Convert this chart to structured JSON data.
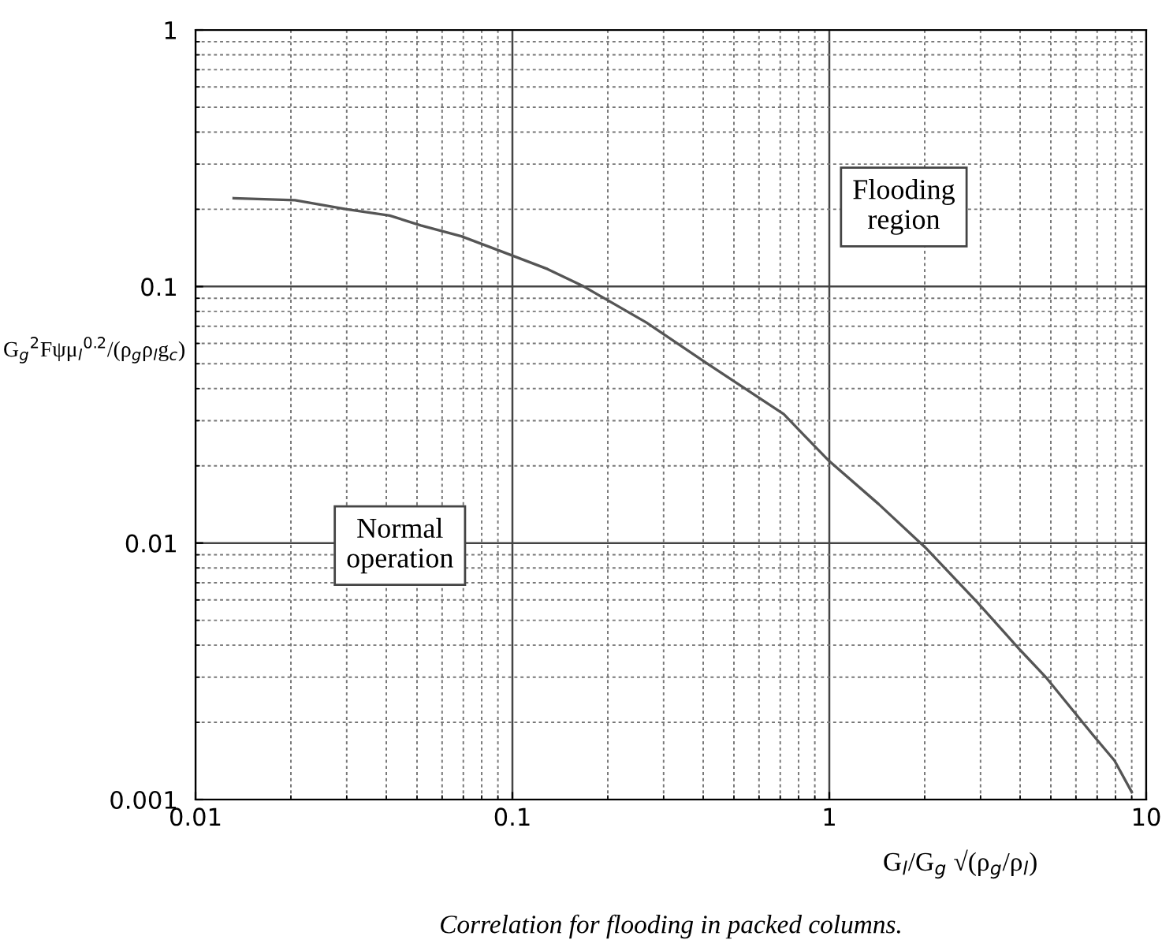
{
  "chart_data": {
    "type": "line",
    "x": [
      0.0132,
      0.0206,
      0.03,
      0.041,
      0.0514,
      0.069,
      0.091,
      0.129,
      0.168,
      0.265,
      0.405,
      0.718,
      0.99,
      1.43,
      2.01,
      2.94,
      4.0,
      4.81,
      6.78,
      7.94,
      9.0
    ],
    "series": [
      {
        "color": "#555555",
        "values": [
          0.221,
          0.217,
          0.2,
          0.189,
          0.173,
          0.157,
          0.138,
          0.117,
          0.1,
          0.0723,
          0.0508,
          0.0318,
          0.0211,
          0.0142,
          0.0096,
          0.00585,
          0.00383,
          0.00301,
          0.00179,
          0.00142,
          0.00107
        ]
      }
    ],
    "log": "xy",
    "xlim": [
      0.01,
      10
    ],
    "ylim": [
      0.001,
      1
    ],
    "xticks": [
      0.01,
      0.1,
      1,
      10
    ],
    "yticks": [
      0.001,
      0.01,
      0.1,
      1
    ],
    "xlabel": "G$_{l}$/G$_{g}$ √(ρ$_{g}$/ρ$_{l}$)",
    "ylabel": "G$_{g}$$^{2}$Fψμ$_{l}$$^{0.2}$/(ρ$_{g}$ρ$_{l}$g$_{c}$)",
    "grid": true,
    "marker": "none",
    "line_style": "solid",
    "annotations": [
      "Flooding\nregion",
      "Normal\noperation",
      "Correlation for flooding in packed columns."
    ]
  }
}
